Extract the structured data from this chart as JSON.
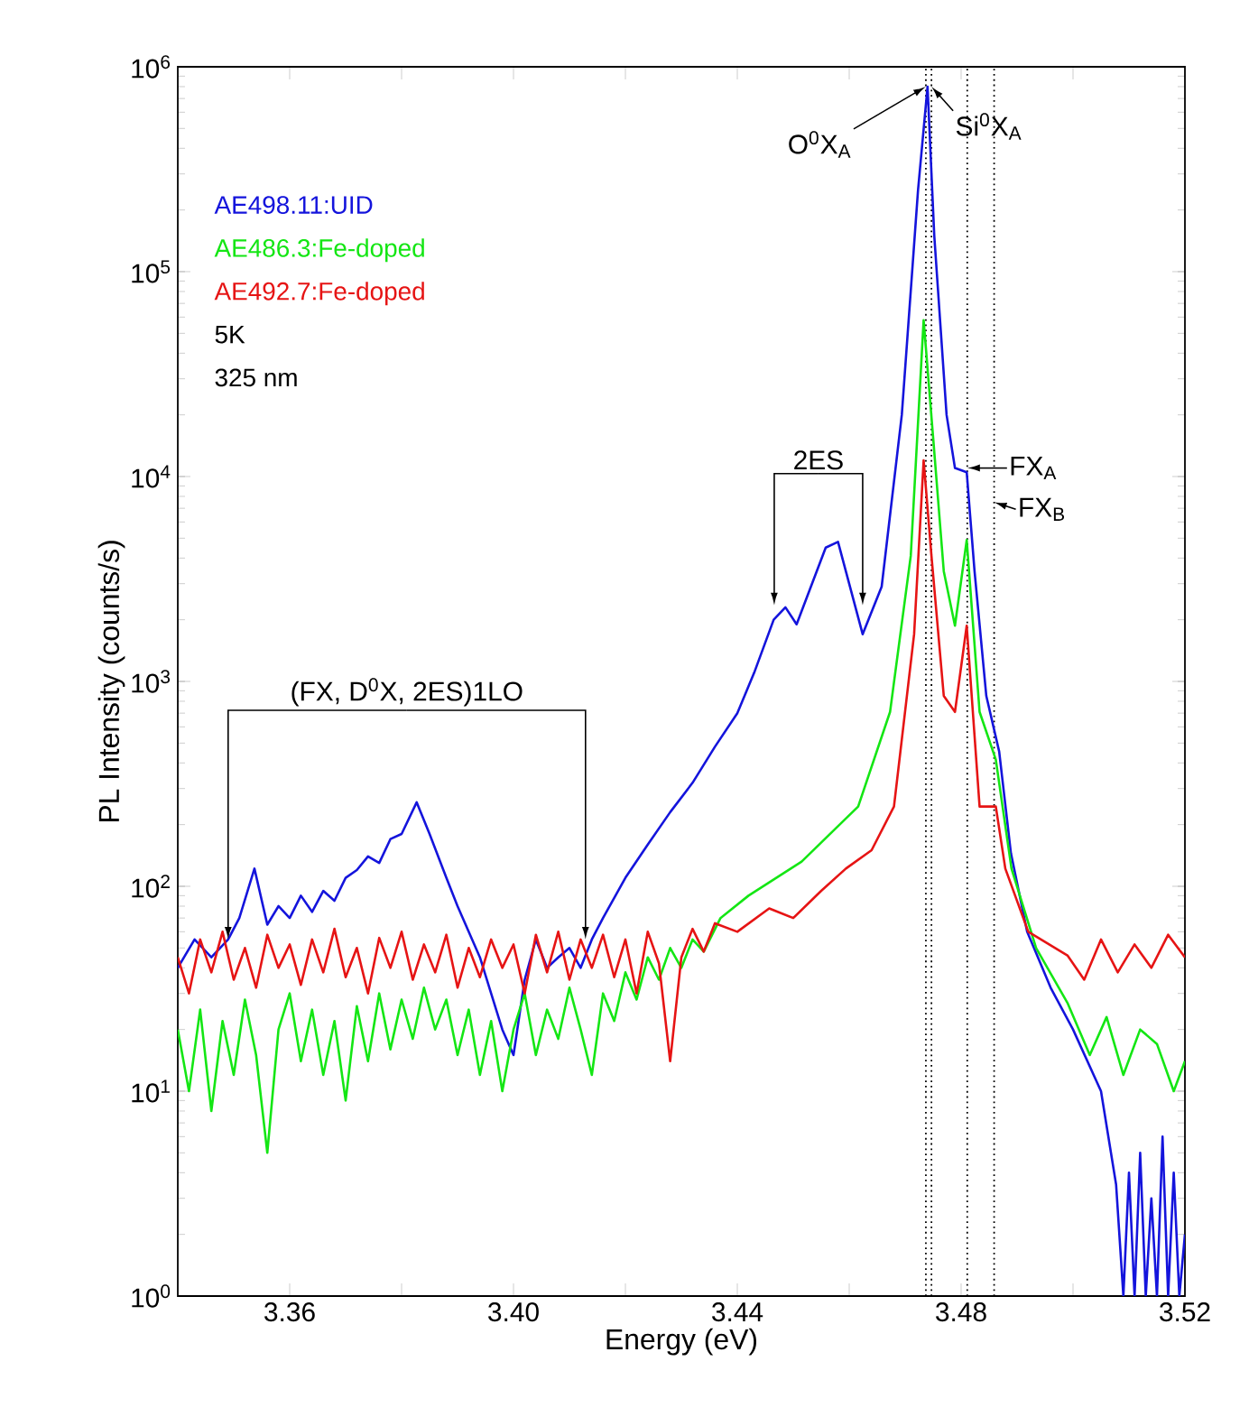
{
  "chart_data": {
    "type": "line",
    "xlabel": "Energy (eV)",
    "ylabel": "PL Intensity (counts/s)",
    "log": "y",
    "legend": "top left",
    "line_style": "solid",
    "marker": "none",
    "grid": false,
    "xlim": [
      3.34,
      3.52
    ],
    "ylim": [
      1,
      1000000
    ],
    "xticks": [
      3.36,
      {
        "value": 3.38,
        "label": null
      },
      {
        "value": 3.4,
        "label": "3.40"
      },
      {
        "value": 3.42,
        "label": null
      },
      3.44,
      {
        "value": 3.46,
        "label": null
      },
      3.48,
      {
        "value": 3.5,
        "label": null
      },
      3.52
    ],
    "yticks": [
      {
        "value": 1,
        "label": "10$^{0}$"
      },
      {
        "value": 10,
        "label": "10$^{1}$"
      },
      {
        "value": 100,
        "label": "10$^{2}$"
      },
      {
        "value": 1000,
        "label": "10$^{3}$"
      },
      {
        "value": 10000,
        "label": "10$^{4}$"
      },
      {
        "value": 100000,
        "label": "10$^{5}$"
      },
      {
        "value": 1000000,
        "label": "10$^{6}$"
      }
    ],
    "series": [
      {
        "name": "AE498.11:UID",
        "color": "#1414dc",
        "x": [
          3.34,
          3.343,
          3.346,
          3.349,
          3.351,
          3.3537,
          3.356,
          3.358,
          3.36,
          3.362,
          3.364,
          3.366,
          3.368,
          3.37,
          3.372,
          3.374,
          3.376,
          3.378,
          3.38,
          3.3827,
          3.385,
          3.388,
          3.39,
          3.392,
          3.394,
          3.396,
          3.398,
          3.4,
          3.402,
          3.404,
          3.406,
          3.408,
          3.41,
          3.412,
          3.414,
          3.416,
          3.42,
          3.424,
          3.428,
          3.432,
          3.436,
          3.44,
          3.443,
          3.4465,
          3.4486,
          3.4506,
          3.4558,
          3.458,
          3.4624,
          3.4658,
          3.4694,
          3.4723,
          3.474,
          3.4752,
          3.4774,
          3.4789,
          3.481,
          3.4824,
          3.4845,
          3.4868,
          3.4889,
          3.4918,
          3.496,
          3.5,
          3.505,
          3.5077,
          3.509,
          3.51,
          3.511,
          3.512,
          3.513,
          3.514,
          3.515,
          3.516,
          3.517,
          3.518,
          3.519,
          3.52
        ],
        "values": [
          40,
          55,
          45,
          55,
          70,
          122,
          65,
          80,
          70,
          90,
          75,
          95,
          85,
          110,
          120,
          140,
          130,
          170,
          180,
          257,
          180,
          110,
          80,
          60,
          45,
          30,
          20,
          15,
          35,
          55,
          40,
          45,
          50,
          40,
          55,
          70,
          110,
          160,
          230,
          320,
          480,
          700,
          1100,
          2000,
          2300,
          1900,
          4500,
          4800,
          1700,
          2900,
          20000,
          250000,
          800000,
          150000,
          20000,
          11000,
          10500,
          3450,
          850,
          455,
          145,
          60,
          32,
          20,
          10,
          3.5,
          1,
          4,
          1,
          5,
          1,
          3,
          1,
          6,
          1,
          4,
          1,
          2
        ]
      },
      {
        "name": "AE486.3:Fe-doped",
        "color": "#14e614",
        "x": [
          3.34,
          3.342,
          3.344,
          3.346,
          3.348,
          3.35,
          3.352,
          3.354,
          3.356,
          3.358,
          3.36,
          3.362,
          3.364,
          3.366,
          3.368,
          3.37,
          3.372,
          3.374,
          3.376,
          3.378,
          3.38,
          3.382,
          3.384,
          3.386,
          3.388,
          3.39,
          3.392,
          3.394,
          3.396,
          3.398,
          3.4,
          3.402,
          3.404,
          3.406,
          3.408,
          3.41,
          3.412,
          3.414,
          3.416,
          3.418,
          3.42,
          3.422,
          3.424,
          3.426,
          3.428,
          3.43,
          3.432,
          3.434,
          3.437,
          3.442,
          3.4515,
          3.4616,
          3.4673,
          3.471,
          3.4733,
          3.475,
          3.4769,
          3.4789,
          3.481,
          3.4833,
          3.4862,
          3.489,
          3.4934,
          3.499,
          3.503,
          3.506,
          3.509,
          3.512,
          3.515,
          3.518,
          3.52
        ],
        "values": [
          20,
          10,
          25,
          8,
          22,
          12,
          28,
          15,
          5,
          20,
          30,
          14,
          25,
          12,
          22,
          9,
          26,
          14,
          30,
          16,
          28,
          18,
          32,
          20,
          28,
          15,
          25,
          12,
          22,
          10,
          20,
          30,
          15,
          25,
          18,
          32,
          20,
          12,
          30,
          22,
          38,
          28,
          45,
          35,
          50,
          40,
          55,
          48,
          70,
          90,
          132,
          245,
          710,
          4100,
          58000,
          15500,
          3450,
          1870,
          4900,
          710,
          415,
          122,
          50,
          27,
          15,
          23,
          12,
          20,
          17,
          10,
          14
        ]
      },
      {
        "name": "AE492.7:Fe-doped",
        "color": "#e61414",
        "x": [
          3.34,
          3.342,
          3.344,
          3.346,
          3.348,
          3.35,
          3.352,
          3.354,
          3.356,
          3.358,
          3.36,
          3.362,
          3.364,
          3.366,
          3.368,
          3.37,
          3.372,
          3.374,
          3.376,
          3.378,
          3.38,
          3.382,
          3.384,
          3.386,
          3.388,
          3.39,
          3.392,
          3.394,
          3.396,
          3.398,
          3.4,
          3.402,
          3.404,
          3.406,
          3.408,
          3.41,
          3.412,
          3.414,
          3.416,
          3.418,
          3.42,
          3.422,
          3.424,
          3.426,
          3.428,
          3.43,
          3.432,
          3.434,
          3.436,
          3.44,
          3.4457,
          3.45,
          3.455,
          3.4594,
          3.464,
          3.468,
          3.4716,
          3.4733,
          3.4747,
          3.4769,
          3.4789,
          3.481,
          3.4833,
          3.4862,
          3.4879,
          3.492,
          3.499,
          3.502,
          3.505,
          3.508,
          3.511,
          3.514,
          3.517,
          3.52
        ],
        "values": [
          45,
          30,
          55,
          38,
          60,
          35,
          50,
          32,
          58,
          40,
          52,
          33,
          55,
          38,
          62,
          36,
          50,
          30,
          56,
          40,
          60,
          35,
          52,
          38,
          58,
          32,
          50,
          36,
          55,
          40,
          52,
          30,
          58,
          38,
          60,
          35,
          55,
          40,
          58,
          36,
          55,
          30,
          60,
          42,
          14,
          45,
          62,
          48,
          66,
          60,
          78,
          70,
          95,
          122,
          150,
          245,
          1700,
          12000,
          4100,
          850,
          710,
          1870,
          245,
          245,
          122,
          60,
          46,
          35,
          55,
          38,
          52,
          40,
          58,
          45
        ]
      }
    ],
    "ref_lines": [
      {
        "axis": "x",
        "value": 3.4737,
        "line_style": "dotted",
        "color": "#000000"
      },
      {
        "axis": "x",
        "value": 3.4747,
        "line_style": "dotted",
        "color": "#000000"
      },
      {
        "axis": "x",
        "value": 3.4811,
        "line_style": "dotted",
        "color": "#000000"
      },
      {
        "axis": "x",
        "value": 3.4859,
        "line_style": "dotted",
        "color": "#000000"
      }
    ],
    "annotations": [
      {
        "text": "O$^{0}$X$_{A}$",
        "x": 3.4737,
        "y": 800000
      },
      {
        "text": "Si$^{0}$X$_{A}$",
        "x": 3.4747,
        "y": 800000
      },
      {
        "text": "FX$_{A}$",
        "x": 3.4811,
        "y": 11000
      },
      {
        "text": "FX$_{B}$",
        "x": 3.4859,
        "y": 7500
      },
      {
        "text": "2ES",
        "x": 3.4466,
        "y": 2350
      },
      {
        "text": "(FX, D$^{0}$X, 2ES)1LO",
        "x": 3.349,
        "y": 55
      },
      "5K",
      "325 nm"
    ]
  }
}
